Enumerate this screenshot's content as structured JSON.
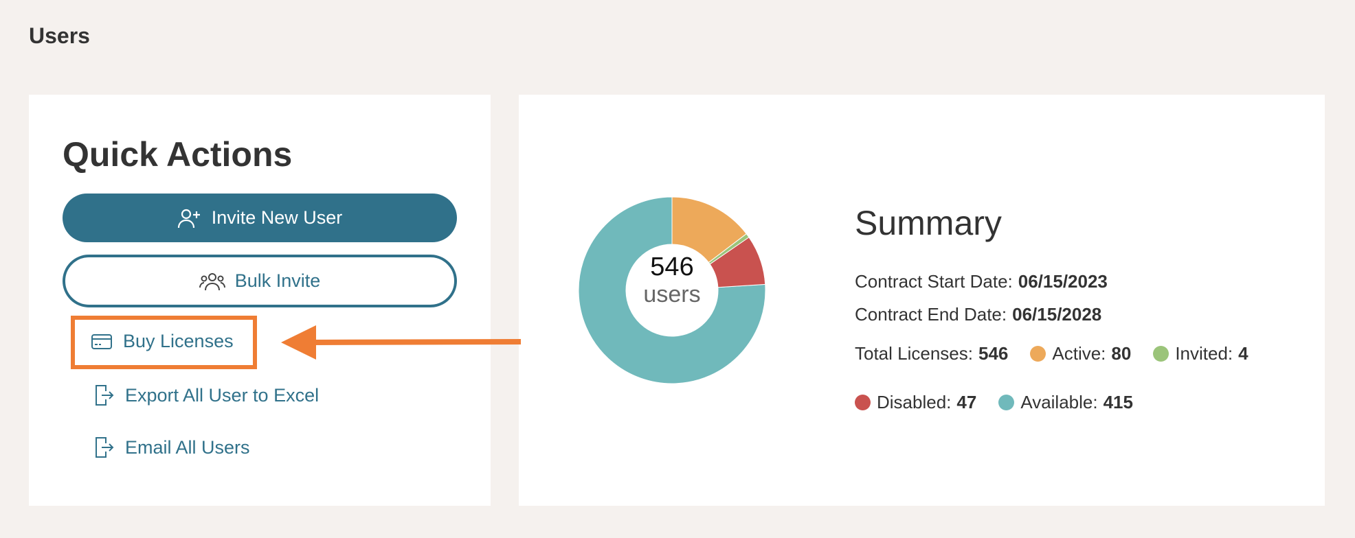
{
  "header": {
    "title": "Users"
  },
  "quick_actions": {
    "title": "Quick Actions",
    "buttons": [
      "Invite New User",
      "Bulk Invite"
    ],
    "links": [
      "Buy Licenses",
      "Export All User to Excel",
      "Email All Users"
    ]
  },
  "summary": {
    "title": "Summary",
    "contract_start": {
      "label": "Contract Start Date:",
      "value": "06/15/2023"
    },
    "contract_end": {
      "label": "Contract End Date:",
      "value": "06/15/2028"
    },
    "total": {
      "label": "Total Licenses:",
      "value": 546
    }
  },
  "chart_data": {
    "type": "pie",
    "center_value": 546,
    "center_label": "users",
    "categories": [
      "Active:",
      "Invited:",
      "Disabled:",
      "Available:"
    ],
    "values": [
      80,
      4,
      47,
      415
    ],
    "colors": [
      "#eda95a",
      "#9bc47a",
      "#c9524f",
      "#70b9bb"
    ]
  }
}
